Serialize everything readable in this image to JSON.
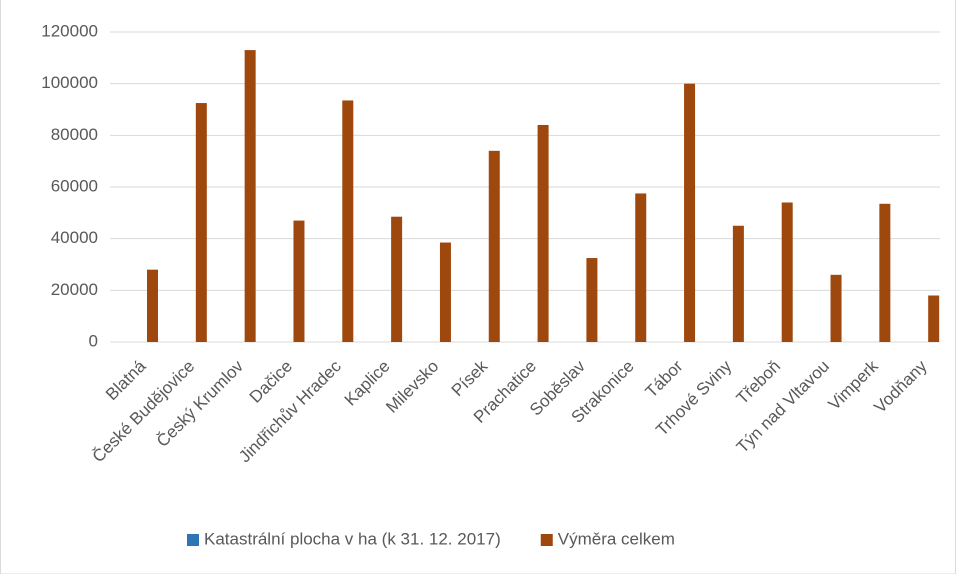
{
  "chart_data": {
    "type": "bar",
    "categories": [
      "Blatná",
      "České Budějovice",
      "Český Krumlov",
      "Dačice",
      "Jindřichův Hradec",
      "Kaplice",
      "Milevsko",
      "Písek",
      "Prachatice",
      "Soběslav",
      "Strakonice",
      "Tábor",
      "Trhové Sviny",
      "Třeboň",
      "Týn nad Vltavou",
      "Vimperk",
      "Vodňany"
    ],
    "series": [
      {
        "name": "Katastrální plocha v ha (k 31. 12. 2017)",
        "color": "#2e75b6",
        "values": [
          null,
          null,
          null,
          null,
          null,
          null,
          null,
          null,
          null,
          null,
          null,
          null,
          null,
          null,
          null,
          null,
          null
        ]
      },
      {
        "name": "Výměra celkem",
        "color": "#9e480e",
        "values": [
          28000,
          92500,
          113000,
          47000,
          93500,
          48500,
          38500,
          74000,
          84000,
          32500,
          57500,
          100000,
          45000,
          54000,
          26000,
          53500,
          18000
        ]
      }
    ],
    "ylim": [
      0,
      120000
    ],
    "yticks": [
      0,
      20000,
      40000,
      60000,
      80000,
      100000,
      120000
    ],
    "grid": true,
    "legend": "bottom"
  }
}
